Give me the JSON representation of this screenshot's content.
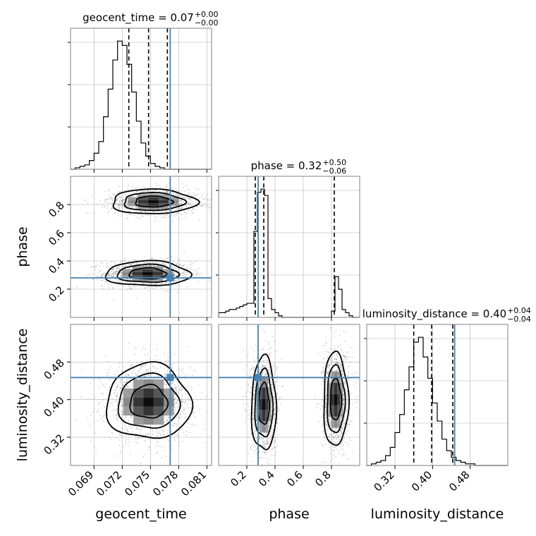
{
  "chart_data": {
    "type": "corner",
    "parameters": [
      {
        "id": "geocent_time",
        "label": "geocent_time",
        "title": {
          "text": "geocent_time = 0.07",
          "plus": "+0.00",
          "minus": "−0.00"
        },
        "range": [
          0.0665,
          0.0815
        ],
        "ticks": [
          0.069,
          0.072,
          0.075,
          0.078,
          0.081
        ],
        "tick_labels": [
          "0.069",
          "0.072",
          "0.075",
          "0.078",
          "0.081"
        ],
        "injection": 0.0771,
        "quantiles": [
          0.0727,
          0.0748,
          0.0768
        ],
        "hist": {
          "edges_start": 0.0665,
          "bin_width": 0.0005,
          "counts": [
            0,
            1,
            2,
            3,
            6,
            11,
            19,
            36,
            55,
            75,
            88,
            85,
            72,
            53,
            33,
            18,
            9,
            4,
            2,
            1,
            0,
            0,
            0,
            0,
            0,
            0,
            0,
            0,
            0,
            0
          ]
        }
      },
      {
        "id": "phase",
        "label": "phase",
        "title": {
          "text": "phase = 0.32",
          "plus": "+0.50",
          "minus": "−0.06"
        },
        "range": [
          0.0,
          1.0
        ],
        "ticks": [
          0.2,
          0.4,
          0.6,
          0.8
        ],
        "tick_labels": [
          "0.2",
          "0.4",
          "0.6",
          "0.8"
        ],
        "injection": 0.28,
        "quantiles": [
          0.26,
          0.32,
          0.82
        ],
        "hist": {
          "edges_start": 0.0,
          "bin_width": 0.025,
          "counts": [
            3,
            3,
            4,
            5,
            5,
            6,
            7,
            8,
            9,
            9,
            55,
            80,
            82,
            78,
            12,
            5,
            3,
            1,
            0,
            0,
            0,
            0,
            0,
            0,
            0,
            0,
            0,
            0,
            0,
            0,
            0,
            0,
            4,
            26,
            18,
            5,
            3,
            1,
            0,
            0
          ]
        }
      },
      {
        "id": "luminosity_distance",
        "label": "luminosity_distance",
        "title": {
          "text": "luminosity_distance = 0.40",
          "plus": "+0.04",
          "minus": "−0.04"
        },
        "range": [
          0.26,
          0.56
        ],
        "ticks": [
          0.32,
          0.4,
          0.48
        ],
        "tick_labels": [
          "0.32",
          "0.40",
          "0.48"
        ],
        "injection": 0.447,
        "quantiles": [
          0.36,
          0.398,
          0.443
        ],
        "hist": {
          "edges_start": 0.26,
          "bin_width": 0.01,
          "counts": [
            0,
            1,
            2,
            3,
            6,
            11,
            20,
            31,
            46,
            60,
            75,
            78,
            66,
            53,
            38,
            27,
            16,
            9,
            5,
            3,
            2,
            1,
            1,
            0,
            0,
            0,
            0,
            0,
            0,
            0
          ]
        }
      }
    ],
    "joint": [
      {
        "x": "geocent_time",
        "y": "phase",
        "modes": [
          {
            "cx": 0.0747,
            "cy": 0.31,
            "sx": 0.0018,
            "sy": 0.035
          },
          {
            "cx": 0.0753,
            "cy": 0.82,
            "sx": 0.0018,
            "sy": 0.035
          }
        ]
      },
      {
        "x": "geocent_time",
        "y": "luminosity_distance",
        "modes": [
          {
            "cx": 0.0748,
            "cy": 0.395,
            "sx": 0.0018,
            "sy": 0.032
          }
        ]
      },
      {
        "x": "phase",
        "y": "luminosity_distance",
        "modes": [
          {
            "cx": 0.32,
            "cy": 0.39,
            "sx": 0.035,
            "sy": 0.04
          },
          {
            "cx": 0.83,
            "cy": 0.4,
            "sx": 0.035,
            "sy": 0.04
          }
        ]
      }
    ],
    "grid": true,
    "colors": {
      "injection": "#4682b4",
      "hist": "#000000",
      "quantile": "#000000",
      "grid": "#b0b0b0",
      "scatter": "#555555"
    }
  }
}
